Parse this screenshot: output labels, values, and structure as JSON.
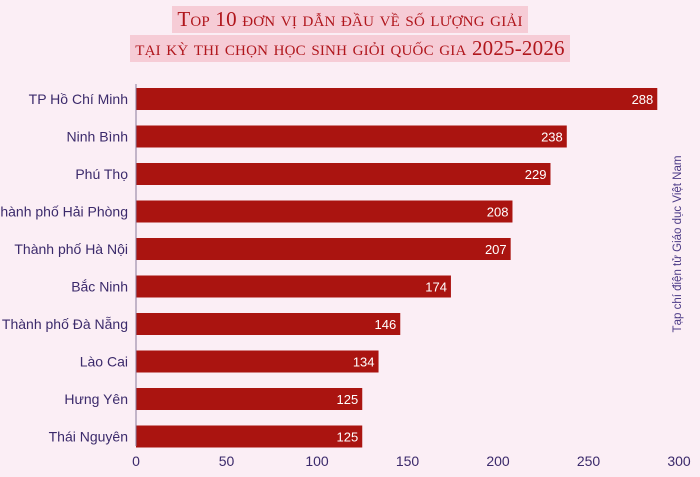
{
  "header": {
    "title_line1": "Top 10 đơn vị dẫn đầu về số lượng giải",
    "title_line2": "tại kỳ thi chọn học sinh giỏi quốc gia 2025-2026"
  },
  "source": "Tạp chí điện tử Giáo dục Việt Nam",
  "colors": {
    "bar": "#aa1410",
    "background": "#fbeef5",
    "title": "#b0161c",
    "text": "#3b2a6b"
  },
  "chart_data": {
    "type": "bar",
    "orientation": "horizontal",
    "title": "Top 10 đơn vị dẫn đầu về số lượng giải tại kỳ thi chọn học sinh giỏi quốc gia 2025-2026",
    "categories": [
      "TP Hồ Chí Minh",
      "Ninh Bình",
      "Phú Thọ",
      "Thành phố Hải Phòng",
      "Thành phố Hà Nội",
      "Bắc Ninh",
      "Thành phố Đà Nẵng",
      "Lào Cai",
      "Hưng Yên",
      "Thái Nguyên"
    ],
    "values": [
      288,
      238,
      229,
      208,
      207,
      174,
      146,
      134,
      125,
      125
    ],
    "xlim": [
      0,
      300
    ],
    "xticks": [
      0,
      50,
      100,
      150,
      200,
      250,
      300
    ],
    "grid": false,
    "data_labels": true
  }
}
